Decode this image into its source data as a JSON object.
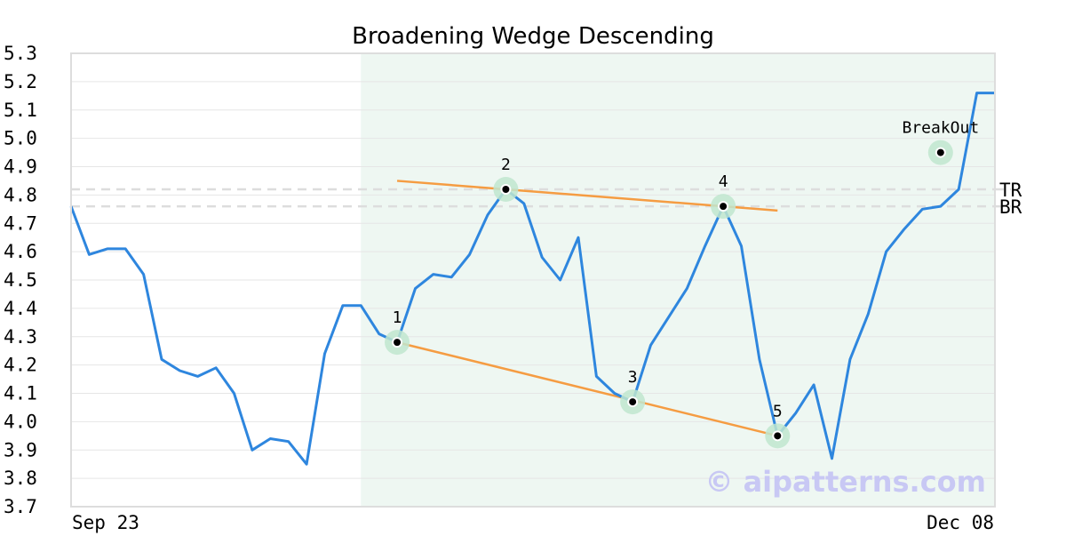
{
  "chart_data": {
    "type": "line",
    "title": "Broadening Wedge Descending",
    "xlabel": "",
    "ylabel": "",
    "ylim": [
      3.7,
      5.3
    ],
    "y_ticks": [
      "5.3",
      "5.2",
      "5.1",
      "5.0",
      "4.9",
      "4.8",
      "4.7",
      "4.6",
      "4.5",
      "4.4",
      "4.3",
      "4.2",
      "4.1",
      "4.0",
      "3.9",
      "3.8",
      "3.7"
    ],
    "x_tick_labels": [
      "Sep 23",
      "Dec 08"
    ],
    "grid": true,
    "pattern_region": {
      "x_start": 16,
      "x_end": 51
    },
    "reference_lines": [
      {
        "name": "TR",
        "value": 4.82
      },
      {
        "name": "BR",
        "value": 4.76
      }
    ],
    "series": [
      {
        "values": [
          4.76,
          4.59,
          4.61,
          4.61,
          4.52,
          4.22,
          4.18,
          4.16,
          4.19,
          4.1,
          3.9,
          3.94,
          3.93,
          3.85,
          4.24,
          4.41,
          4.41,
          4.31,
          4.28,
          4.47,
          4.52,
          4.51,
          4.59,
          4.73,
          4.82,
          4.77,
          4.58,
          4.5,
          4.65,
          4.16,
          4.1,
          4.07,
          4.27,
          4.37,
          4.47,
          4.62,
          4.76,
          4.62,
          4.22,
          3.95,
          4.03,
          4.13,
          3.87,
          4.22,
          4.38,
          4.6,
          4.68,
          4.75,
          4.76,
          4.82,
          5.16,
          5.16
        ]
      }
    ],
    "trend_lines": [
      {
        "from": [
          18,
          4.85
        ],
        "to": [
          39,
          4.745
        ]
      },
      {
        "from": [
          18,
          4.28
        ],
        "to": [
          39,
          3.95
        ]
      }
    ],
    "pattern_points": [
      {
        "label": "1",
        "x": 18,
        "y": 4.28
      },
      {
        "label": "2",
        "x": 24,
        "y": 4.82
      },
      {
        "label": "3",
        "x": 31,
        "y": 4.07
      },
      {
        "label": "4",
        "x": 36,
        "y": 4.76
      },
      {
        "label": "5",
        "x": 39,
        "y": 3.95
      },
      {
        "label": "BreakOut",
        "x": 48,
        "y": 4.95
      }
    ],
    "colors": {
      "price_line": "#2e86de",
      "trend_line": "#f59c42",
      "pattern_region": "#eef7f2",
      "marker_halo": "#bfe6cf",
      "reference_line": "#dddddd",
      "watermark": "#c8c8f4"
    }
  },
  "watermark": "© aipatterns.com"
}
